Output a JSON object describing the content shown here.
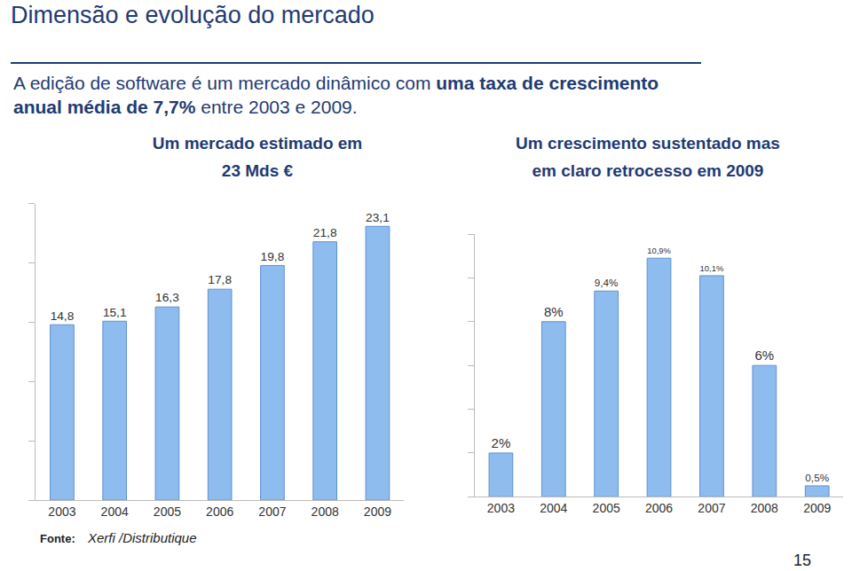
{
  "header": {
    "title": "Dimensão e evolução do mercado",
    "subtitle_parts": [
      "A edição de software é um mercado dinâmico com ",
      "uma taxa de crescimento\nanual média de 7,7%",
      " entre 2003 e 2009."
    ]
  },
  "chart_data": [
    {
      "type": "bar",
      "title": "Um mercado estimado em\n23 Mds €",
      "categories": [
        "2003",
        "2004",
        "2005",
        "2006",
        "2007",
        "2008",
        "2009"
      ],
      "values": [
        14.8,
        15.1,
        16.3,
        17.8,
        19.8,
        21.8,
        23.1
      ],
      "value_labels": [
        "14,8",
        "15,1",
        "16,3",
        "17,8",
        "19,8",
        "21,8",
        "23,1"
      ],
      "color": "#8fbcee",
      "ylim": [
        0,
        25
      ],
      "yticks": [
        0,
        5,
        10,
        15,
        20,
        25
      ],
      "grid": false,
      "data_labels": true,
      "tick_labels": "x"
    },
    {
      "type": "bar",
      "title": "Um crescimento sustentado mas\nem claro retrocesso em 2009",
      "categories": [
        "2003",
        "2004",
        "2005",
        "2006",
        "2007",
        "2008",
        "2009"
      ],
      "values": [
        2,
        8,
        9.4,
        10.9,
        10.1,
        6,
        0.5
      ],
      "value_labels": [
        "2%",
        "8%",
        "9,4%",
        "10,9%",
        "10,1%",
        "6%",
        "0,5%"
      ],
      "color": "#8fbcee",
      "ylim": [
        0,
        12
      ],
      "yticks": [
        0,
        2,
        4,
        6,
        8,
        10,
        12
      ],
      "grid": false,
      "data_labels": true,
      "tick_labels": "x"
    }
  ],
  "source": {
    "label": "Fonte:",
    "text": "Xerfi /Distributique"
  },
  "page_number": "15"
}
